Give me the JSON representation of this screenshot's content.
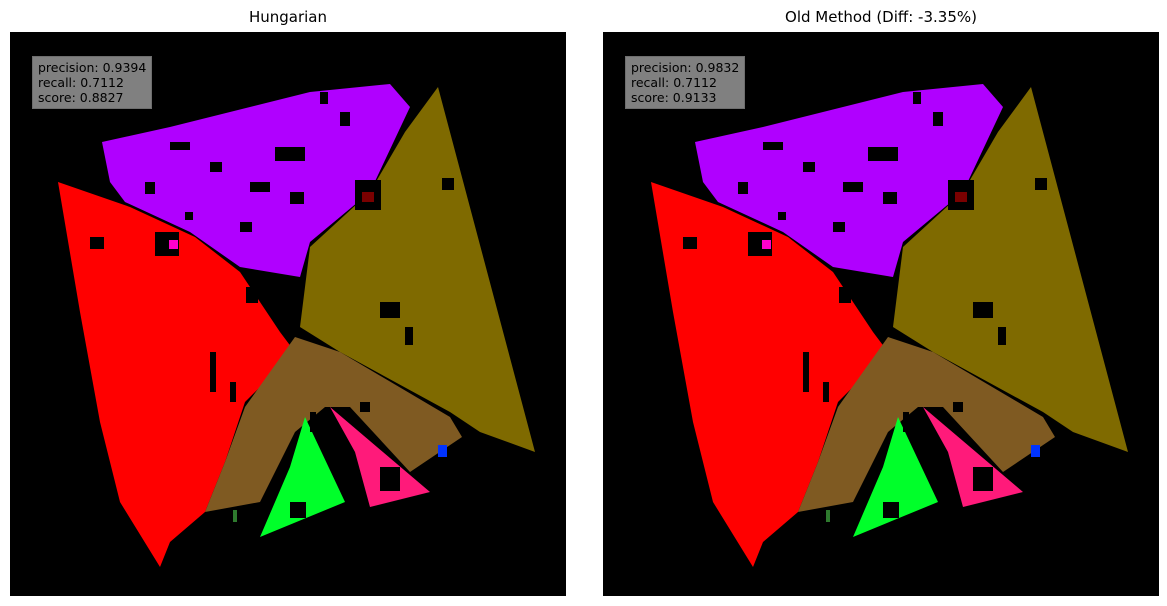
{
  "panels": [
    {
      "title": "Hungarian",
      "metrics": {
        "precision": "precision: 0.9394",
        "recall": "recall: 0.7112",
        "score": "score: 0.8827"
      }
    },
    {
      "title": "Old Method (Diff: -3.35%)",
      "metrics": {
        "precision": "precision: 0.9832",
        "recall": "recall: 0.7112",
        "score": "score: 0.9133"
      }
    }
  ],
  "colors": {
    "background": "#000000",
    "purple_segment": "#b000ff",
    "olive_segment": "#7f6a00",
    "red_segment": "#ff0000",
    "brown_segment": "#7f5a22",
    "green_segment": "#00ff2a",
    "pink_segment": "#ff1a7a",
    "blue_marker": "#0033ff",
    "magenta_marker": "#ff00cc",
    "darkred_marker": "#7a0000",
    "darkgreen_marker": "#2e7a2e",
    "legend_box": "#808080"
  }
}
